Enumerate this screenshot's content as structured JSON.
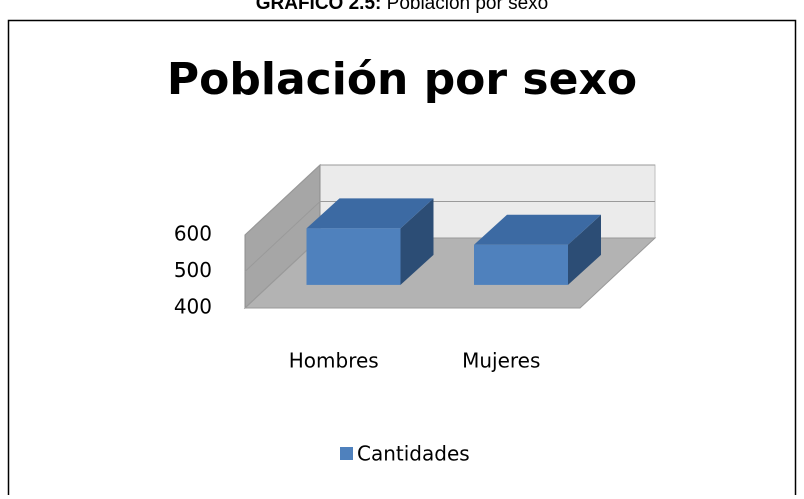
{
  "caption": {
    "label": "GRAFICO 2.5:",
    "text": "Población por sexo"
  },
  "chart_data": {
    "type": "bar3d",
    "title": "Población por sexo",
    "categories": [
      "Hombres",
      "Mujeres"
    ],
    "series": [
      {
        "name": "Cantidades",
        "color": "#4f81bd",
        "values": [
          555,
          510
        ]
      }
    ],
    "ylim": [
      400,
      600
    ],
    "yticks": [
      400,
      500,
      600
    ],
    "grid": true,
    "legend": "bottom"
  }
}
